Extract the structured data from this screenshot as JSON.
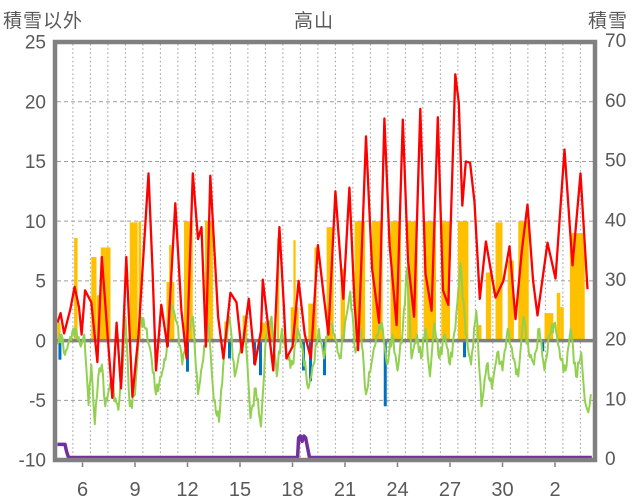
{
  "header": {
    "left_axis_title": "積雪以外",
    "chart_title": "高山",
    "right_axis_title": "積雪"
  },
  "colors": {
    "red": "#fe0000",
    "green": "#92d050",
    "orange": "#ffc000",
    "blue": "#0070c0",
    "purple": "#7030a0",
    "axis_gray": "#808080",
    "grid_gray": "#9e9e9e",
    "text_gray": "#595959",
    "background": "#ffffff"
  },
  "chart_data": {
    "type": "line+bar weather time series",
    "title": "高山",
    "left_axis": {
      "title": "積雪以外",
      "range": [
        -10,
        25
      ],
      "ticks": [
        25,
        20,
        15,
        10,
        5,
        0,
        -5,
        -10
      ]
    },
    "right_axis": {
      "title": "積雪",
      "range": [
        0,
        70
      ],
      "ticks": [
        70,
        60,
        50,
        40,
        30,
        20,
        10,
        0
      ]
    },
    "x_axis": {
      "tick_labels": [
        "6",
        "9",
        "12",
        "15",
        "18",
        "21",
        "24",
        "27",
        "30",
        "2"
      ],
      "tick_day_positions": [
        6,
        9,
        12,
        15,
        18,
        21,
        24,
        27,
        30,
        33
      ],
      "day_start": 4.57,
      "day_end": 35.1,
      "gridlines": "daily dashed vertical; dashed horizontal every 5 units; solid zero line"
    },
    "series": {
      "red_line": {
        "axis": "left",
        "color": "#fe0000",
        "points": [
          [
            4.57,
            1.5
          ],
          [
            4.75,
            2.3
          ],
          [
            4.95,
            0.6
          ],
          [
            5.3,
            2.6
          ],
          [
            5.55,
            4.5
          ],
          [
            5.8,
            2.8
          ],
          [
            5.95,
            0.5
          ],
          [
            6.15,
            4.2
          ],
          [
            6.5,
            3.2
          ],
          [
            6.85,
            -1.8
          ],
          [
            7.1,
            7.0
          ],
          [
            7.7,
            -4.8
          ],
          [
            7.95,
            1.5
          ],
          [
            8.2,
            -4.0
          ],
          [
            8.5,
            7.0
          ],
          [
            8.85,
            -4.7
          ],
          [
            9.2,
            0.5
          ],
          [
            9.77,
            14.0
          ],
          [
            10.0,
            6.0
          ],
          [
            10.2,
            -2.5
          ],
          [
            10.5,
            3.0
          ],
          [
            10.85,
            -0.5
          ],
          [
            11.3,
            11.5
          ],
          [
            11.65,
            2.5
          ],
          [
            11.95,
            -1.5
          ],
          [
            12.3,
            14.0
          ],
          [
            12.6,
            8.5
          ],
          [
            12.8,
            9.5
          ],
          [
            13.05,
            -0.5
          ],
          [
            13.3,
            13.8
          ],
          [
            13.75,
            2.0
          ],
          [
            14.05,
            -1.5
          ],
          [
            14.45,
            4.0
          ],
          [
            14.8,
            3.2
          ],
          [
            15.1,
            -1.0
          ],
          [
            15.5,
            3.5
          ],
          [
            15.85,
            -2.0
          ],
          [
            16.2,
            0.8
          ],
          [
            16.3,
            5.1
          ],
          [
            16.9,
            -2.5
          ],
          [
            17.25,
            9.5
          ],
          [
            17.5,
            3.0
          ],
          [
            17.65,
            -1.5
          ],
          [
            18.0,
            -0.5
          ],
          [
            18.35,
            5.0
          ],
          [
            18.7,
            0.5
          ],
          [
            19.05,
            -1.5
          ],
          [
            19.45,
            8.0
          ],
          [
            19.75,
            4.2
          ],
          [
            20.05,
            0.5
          ],
          [
            20.45,
            12.5
          ],
          [
            20.9,
            3.5
          ],
          [
            21.25,
            12.8
          ],
          [
            21.55,
            3.0
          ],
          [
            21.75,
            -0.8
          ],
          [
            22.2,
            17.1
          ],
          [
            22.55,
            6.0
          ],
          [
            22.95,
            1.5
          ],
          [
            23.25,
            18.6
          ],
          [
            23.55,
            8.0
          ],
          [
            23.95,
            1.3
          ],
          [
            24.3,
            18.5
          ],
          [
            24.6,
            6.7
          ],
          [
            24.95,
            2.0
          ],
          [
            25.3,
            19.4
          ],
          [
            25.6,
            5.6
          ],
          [
            25.95,
            2.5
          ],
          [
            26.3,
            18.7
          ],
          [
            26.6,
            4.2
          ],
          [
            26.9,
            3.0
          ],
          [
            27.3,
            22.3
          ],
          [
            27.5,
            19.9
          ],
          [
            27.7,
            11.3
          ],
          [
            27.9,
            15.0
          ],
          [
            28.15,
            14.9
          ],
          [
            28.4,
            11.6
          ],
          [
            28.7,
            3.5
          ],
          [
            29.05,
            8.3
          ],
          [
            29.6,
            3.6
          ],
          [
            30.05,
            5.0
          ],
          [
            30.4,
            7.9
          ],
          [
            30.74,
            1.8
          ],
          [
            31.1,
            7.5
          ],
          [
            31.43,
            11.4
          ],
          [
            31.75,
            5.0
          ],
          [
            32.0,
            2.1
          ],
          [
            32.57,
            8.2
          ],
          [
            33.03,
            5.2
          ],
          [
            33.54,
            16.0
          ],
          [
            34.0,
            6.3
          ],
          [
            34.46,
            14.0
          ],
          [
            34.86,
            4.3
          ]
        ]
      },
      "green_line": {
        "axis": "left",
        "color": "#92d050",
        "points": [
          [
            4.57,
            -0.3
          ],
          [
            4.8,
            0.5
          ],
          [
            5.0,
            -1.2
          ],
          [
            5.3,
            0.3
          ],
          [
            5.6,
            1.0
          ],
          [
            5.9,
            -0.5
          ],
          [
            6.1,
            0.5
          ],
          [
            6.35,
            -5.4
          ],
          [
            6.5,
            -2.0
          ],
          [
            6.7,
            -7.0
          ],
          [
            6.9,
            -3.0
          ],
          [
            7.1,
            -2.0
          ],
          [
            7.3,
            -5.5
          ],
          [
            7.6,
            -3.5
          ],
          [
            8.05,
            -5.8
          ],
          [
            8.3,
            -2.0
          ],
          [
            8.45,
            2.0
          ],
          [
            8.7,
            -5.5
          ],
          [
            9.0,
            -4.5
          ],
          [
            9.3,
            2.0
          ],
          [
            9.6,
            1.0
          ],
          [
            9.9,
            -1.0
          ],
          [
            10.2,
            -4.5
          ],
          [
            10.5,
            -3.0
          ],
          [
            10.8,
            -1.0
          ],
          [
            11.1,
            3.0
          ],
          [
            11.4,
            1.5
          ],
          [
            11.7,
            -2.0
          ],
          [
            12.0,
            0.5
          ],
          [
            12.3,
            2.0
          ],
          [
            12.6,
            -4.5
          ],
          [
            12.9,
            -1.5
          ],
          [
            13.2,
            1.5
          ],
          [
            13.5,
            -5.0
          ],
          [
            13.8,
            -6.8
          ],
          [
            14.1,
            -1.0
          ],
          [
            14.4,
            2.0
          ],
          [
            14.7,
            -3.0
          ],
          [
            15.0,
            -1.0
          ],
          [
            15.3,
            1.0
          ],
          [
            15.6,
            -6.5
          ],
          [
            15.9,
            -4.0
          ],
          [
            16.2,
            -7.2
          ],
          [
            16.5,
            0.5
          ],
          [
            16.8,
            2.0
          ],
          [
            17.1,
            -3.0
          ],
          [
            17.4,
            1.0
          ],
          [
            17.7,
            -1.5
          ],
          [
            18.0,
            -2.0
          ],
          [
            18.3,
            1.0
          ],
          [
            18.6,
            -1.0
          ],
          [
            18.9,
            -4.0
          ],
          [
            19.2,
            -2.0
          ],
          [
            19.5,
            1.0
          ],
          [
            19.8,
            -1.5
          ],
          [
            20.1,
            2.0
          ],
          [
            20.4,
            0.5
          ],
          [
            20.7,
            -1.5
          ],
          [
            21.3,
            4.1
          ],
          [
            21.6,
            -1.0
          ],
          [
            21.9,
            1.0
          ],
          [
            22.2,
            -4.5
          ],
          [
            22.5,
            -2.0
          ],
          [
            22.8,
            0.5
          ],
          [
            23.1,
            1.5
          ],
          [
            23.4,
            -2.0
          ],
          [
            23.7,
            0.5
          ],
          [
            24.0,
            -2.5
          ],
          [
            24.3,
            1.0
          ],
          [
            24.55,
            6.1
          ],
          [
            24.8,
            -1.5
          ],
          [
            25.1,
            0.5
          ],
          [
            25.35,
            -1.5
          ],
          [
            25.6,
            1.0
          ],
          [
            25.85,
            -3.0
          ],
          [
            26.1,
            1.5
          ],
          [
            26.4,
            -1.5
          ],
          [
            26.7,
            0.5
          ],
          [
            27.0,
            -2.0
          ],
          [
            27.3,
            1.0
          ],
          [
            27.6,
            6.5
          ],
          [
            27.9,
            0.5
          ],
          [
            28.2,
            -2.0
          ],
          [
            28.5,
            2.5
          ],
          [
            28.8,
            -5.5
          ],
          [
            29.1,
            -2.0
          ],
          [
            29.4,
            -4.0
          ],
          [
            29.7,
            -1.0
          ],
          [
            30.0,
            -2.5
          ],
          [
            30.3,
            1.0
          ],
          [
            30.6,
            -1.5
          ],
          [
            30.9,
            -3.0
          ],
          [
            31.2,
            2.0
          ],
          [
            31.5,
            -1.0
          ],
          [
            31.8,
            -2.0
          ],
          [
            32.1,
            1.0
          ],
          [
            32.4,
            -2.5
          ],
          [
            32.7,
            0.5
          ],
          [
            33.0,
            1.5
          ],
          [
            33.3,
            -1.5
          ],
          [
            33.6,
            -2.5
          ],
          [
            33.9,
            1.0
          ],
          [
            34.2,
            -3.0
          ],
          [
            34.5,
            -1.0
          ],
          [
            34.7,
            -5.0
          ],
          [
            34.9,
            -6.0
          ],
          [
            35.05,
            -4.5
          ]
        ]
      },
      "orange_bars": {
        "axis": "left",
        "color": "#ffc000",
        "format": "[day_start, day_end, height]",
        "bars": [
          [
            4.57,
            4.75,
            1.5
          ],
          [
            5.52,
            5.72,
            8.6
          ],
          [
            6.5,
            6.8,
            7.0
          ],
          [
            6.82,
            7.15,
            3.8
          ],
          [
            7.05,
            7.6,
            7.8
          ],
          [
            8.7,
            9.15,
            9.9
          ],
          [
            9.2,
            9.35,
            10.0
          ],
          [
            10.8,
            11.25,
            4.9
          ],
          [
            10.95,
            11.08,
            8.0
          ],
          [
            11.8,
            12.3,
            10.0
          ],
          [
            13.0,
            13.45,
            10.0
          ],
          [
            14.1,
            14.32,
            1.6
          ],
          [
            15.15,
            15.42,
            2.1
          ],
          [
            16.2,
            16.9,
            1.5
          ],
          [
            17.12,
            17.24,
            8.6
          ],
          [
            17.9,
            18.35,
            2.8
          ],
          [
            18.05,
            18.18,
            8.4
          ],
          [
            18.9,
            19.35,
            3.1
          ],
          [
            19.25,
            19.38,
            7.8
          ],
          [
            19.95,
            20.35,
            9.5
          ],
          [
            20.75,
            21.0,
            6.0
          ],
          [
            21.55,
            22.15,
            10.0
          ],
          [
            22.55,
            23.15,
            10.0
          ],
          [
            23.6,
            24.2,
            10.0
          ],
          [
            24.55,
            25.15,
            10.0
          ],
          [
            25.5,
            26.2,
            10.0
          ],
          [
            26.5,
            27.0,
            10.0
          ],
          [
            27.45,
            28.05,
            10.0
          ],
          [
            28.5,
            28.8,
            1.3
          ],
          [
            29.05,
            29.35,
            5.7
          ],
          [
            29.6,
            30.0,
            9.9
          ],
          [
            30.3,
            30.65,
            6.7
          ],
          [
            30.9,
            31.5,
            10.0
          ],
          [
            32.4,
            32.9,
            2.3
          ],
          [
            33.1,
            33.3,
            4.0
          ],
          [
            33.3,
            33.5,
            2.8
          ],
          [
            33.85,
            34.7,
            9.0
          ]
        ]
      },
      "blue_bars": {
        "axis": "left",
        "color": "#0070c0",
        "format": "[day, value_below_zero]",
        "bars": [
          [
            4.71,
            -1.6
          ],
          [
            10.86,
            -0.5
          ],
          [
            12.0,
            -2.6
          ],
          [
            14.4,
            -1.5
          ],
          [
            15.83,
            -2.0
          ],
          [
            16.17,
            -2.9
          ],
          [
            18.63,
            -2.5
          ],
          [
            19.03,
            -3.4
          ],
          [
            19.83,
            -2.9
          ],
          [
            23.3,
            -5.5
          ],
          [
            27.83,
            -1.4
          ],
          [
            32.3,
            -0.9
          ]
        ]
      },
      "purple_snow_line": {
        "axis": "right",
        "color": "#7030a0",
        "points": [
          [
            4.57,
            2.2
          ],
          [
            5.0,
            2.2
          ],
          [
            5.08,
            1.1
          ],
          [
            5.2,
            0
          ],
          [
            18.29,
            0
          ],
          [
            18.35,
            3.3
          ],
          [
            18.45,
            3.6
          ],
          [
            18.55,
            2.7
          ],
          [
            18.65,
            3.6
          ],
          [
            18.75,
            3.3
          ],
          [
            18.97,
            0
          ],
          [
            35.1,
            0
          ]
        ]
      }
    }
  }
}
